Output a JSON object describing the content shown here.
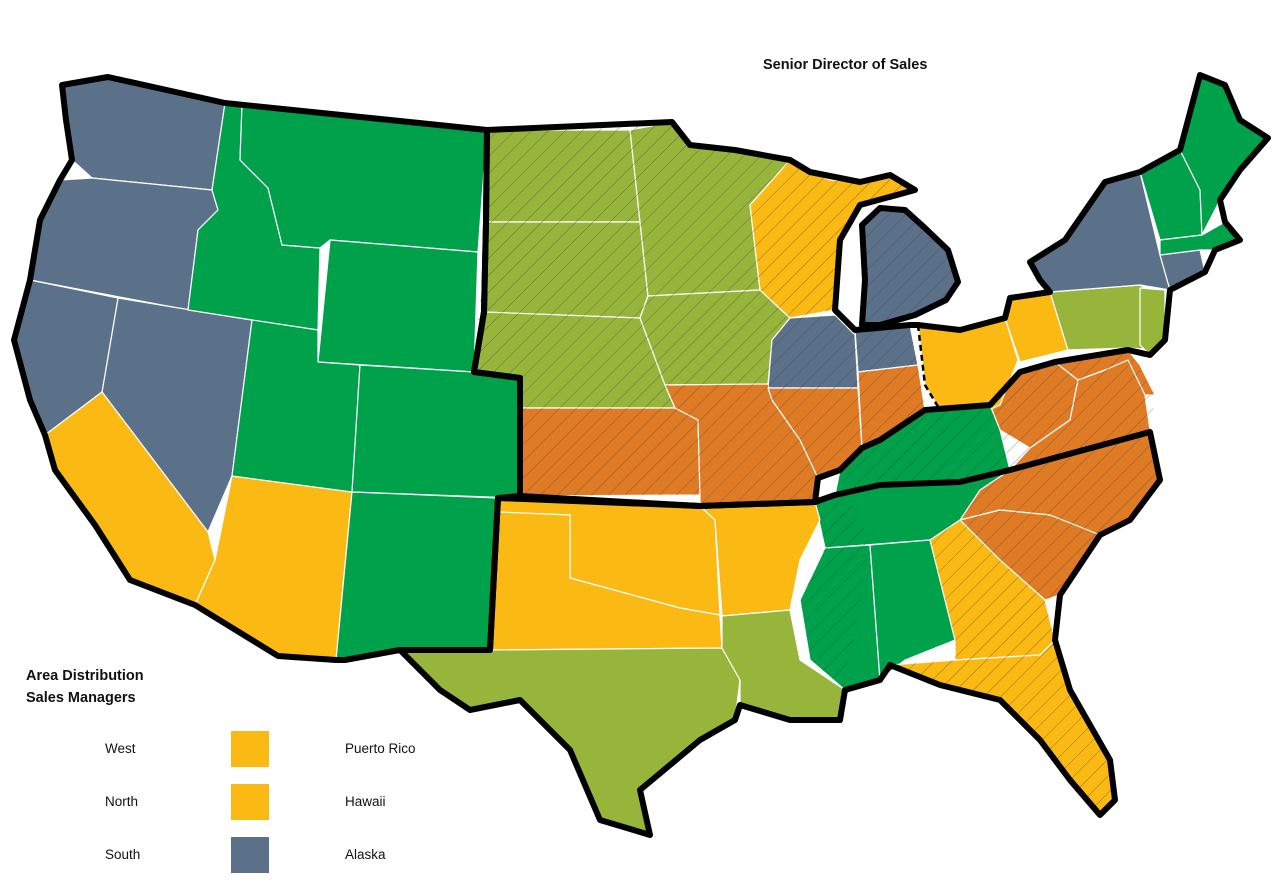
{
  "map": {
    "title": "Senior Director of Sales",
    "colors": {
      "yellow": "#fbb913",
      "green": "#00a14b",
      "olive": "#97b43b",
      "slate": "#5a7189",
      "orange": "#e07b25",
      "outline": "#000000"
    },
    "hatched_pattern": "diagonal-lines"
  },
  "legend": {
    "title_line1": "Area Distribution",
    "title_line2": "Sales Managers",
    "rows": [
      {
        "label": "West",
        "color": "#fbb913",
        "extra": "Puerto Rico"
      },
      {
        "label": "North",
        "color": "#fbb913",
        "extra": "Hawaii"
      },
      {
        "label": "South",
        "color": "#5a7189",
        "extra": "Alaska"
      }
    ]
  }
}
